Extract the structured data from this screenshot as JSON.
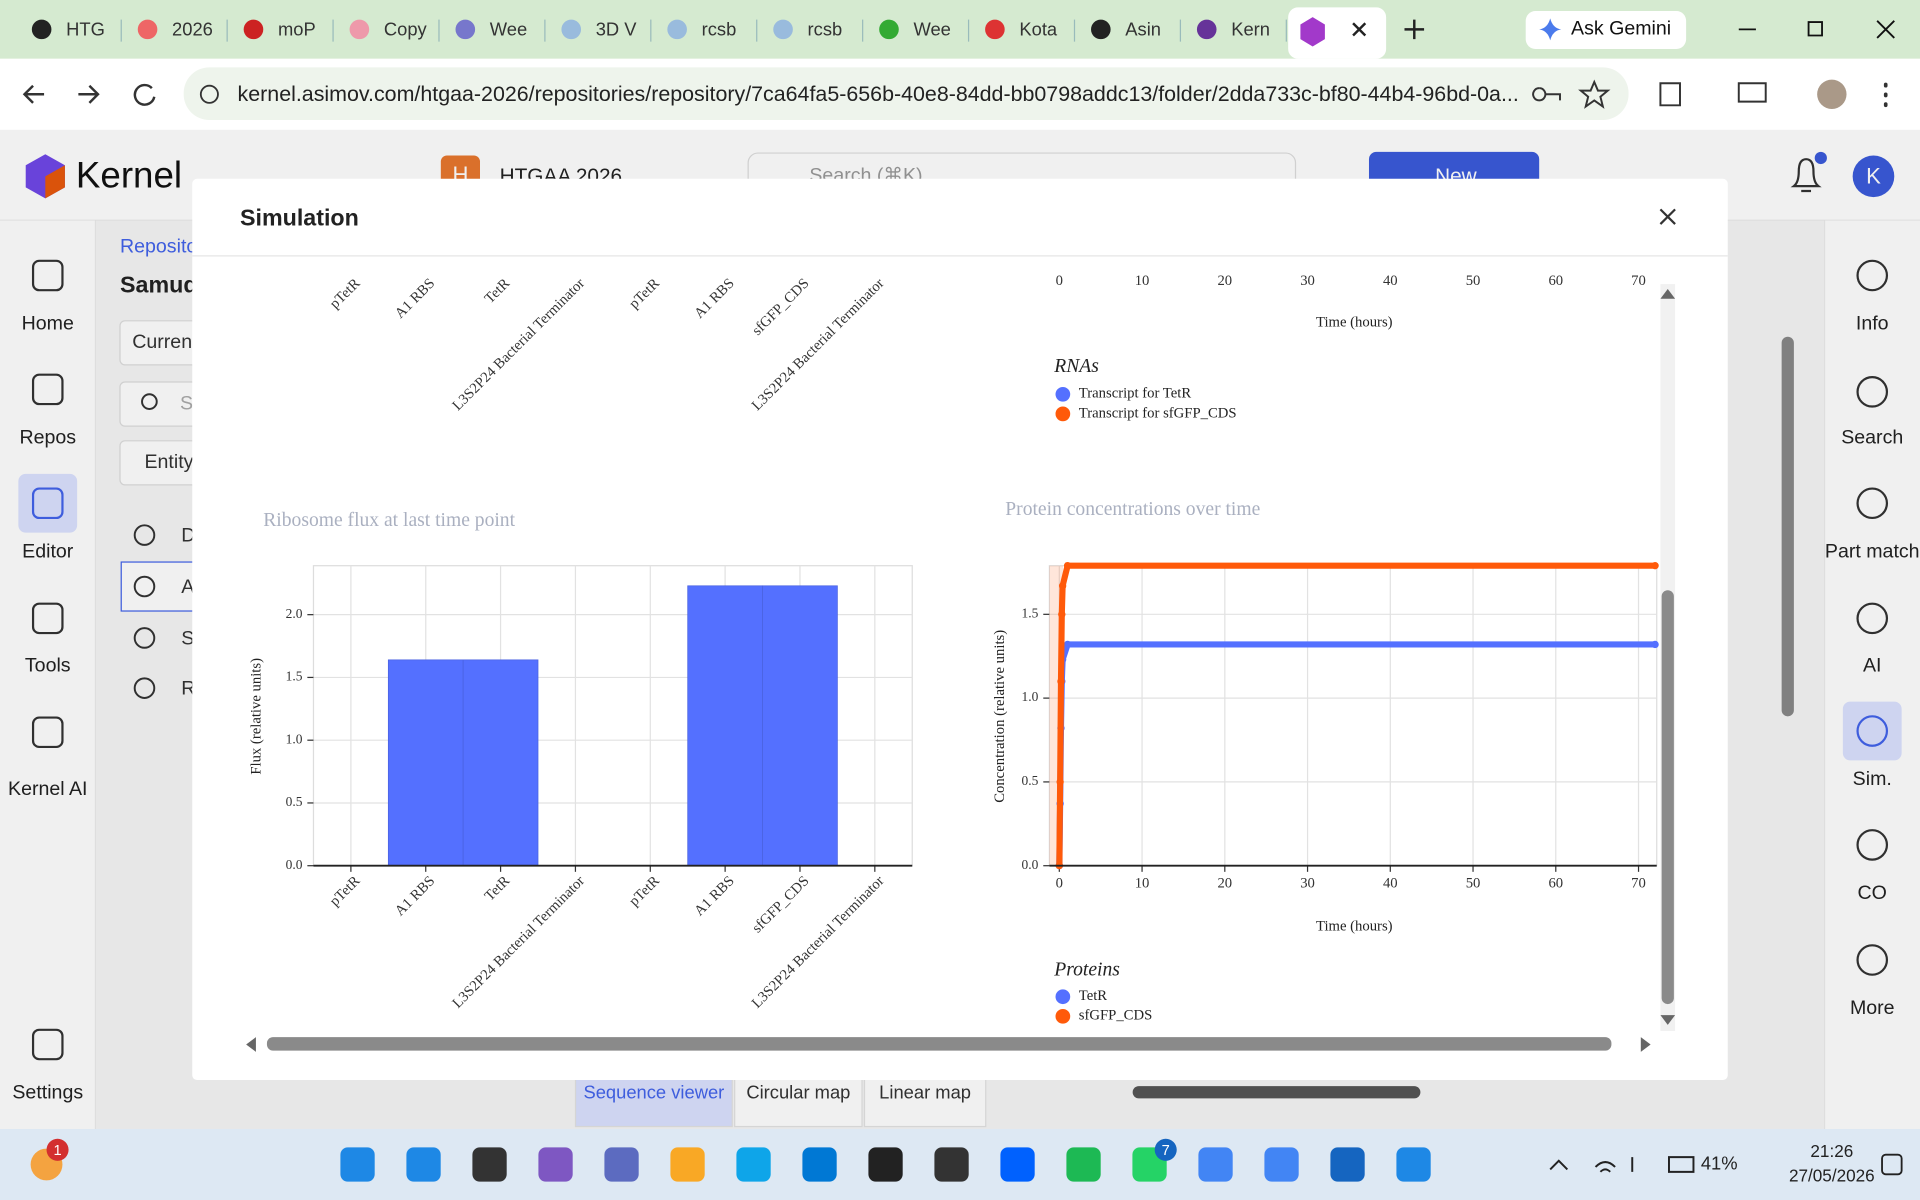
{
  "browser": {
    "tabs": [
      "HTG",
      "2026",
      "moP",
      "Copy",
      "Wee",
      "3D V",
      "rcsb",
      "rcsb",
      "Wee",
      "Kota",
      "Asin",
      "Kern"
    ],
    "gemini": "Ask Gemini",
    "url": "kernel.asimov.com/htgaa-2026/repositories/repository/7ca64fa5-656b-40e8-84dd-bb0798addc13/folder/2dda733c-bf80-44b4-96bd-0a..."
  },
  "app": {
    "logo": "Kernel",
    "workspace_initial": "H",
    "workspace": "HTGAA 2026",
    "search": "Search (⌘K)",
    "new_button": "New",
    "avatar": "K",
    "left_nav": [
      "Home",
      "Repos",
      "Editor",
      "Tools",
      "Kernel AI",
      "Settings"
    ],
    "right_nav": [
      "Info",
      "Search",
      "Part match",
      "AI",
      "Sim.",
      "CO",
      "More"
    ],
    "background": {
      "breadcrumb": "Reposito",
      "title": "Samud",
      "tab": "Curren",
      "search": "S",
      "filter": "Entity",
      "items": [
        "D",
        "A",
        "S",
        "R"
      ]
    },
    "bottom_tabs": [
      "Sequence viewer",
      "Circular map",
      "Linear map"
    ]
  },
  "modal": {
    "title": "Simulation",
    "rna_flux_categories": [
      "pTetR",
      "A1 RBS",
      "TetR",
      "L3S2P24 Bacterial Terminator",
      "pTetR",
      "A1 RBS",
      "sfGFP_CDS",
      "L3S2P24 Bacterial Terminator"
    ],
    "rna_chart": {
      "xticks": [
        0,
        10,
        20,
        30,
        40,
        50,
        60,
        70
      ],
      "x_label": "Time (hours)",
      "legend_title": "RNAs",
      "series": [
        {
          "name": "Transcript for TetR",
          "color": "#5470ff"
        },
        {
          "name": "Transcript for sfGFP_CDS",
          "color": "#ff5a0a"
        }
      ]
    },
    "flux_chart": {
      "type": "bar",
      "title": "Ribosome flux at last time point",
      "y_label": "Flux (relative units)",
      "categories": [
        "pTetR",
        "A1 RBS",
        "TetR",
        "L3S2P24 Bacterial Terminator",
        "pTetR",
        "A1 RBS",
        "sfGFP_CDS",
        "L3S2P24 Bacterial Terminator"
      ],
      "values": [
        0,
        1.64,
        1.64,
        0,
        0,
        2.23,
        2.23,
        0
      ],
      "color": "#5470ff",
      "ylim": [
        0,
        2.39
      ],
      "yticks": [
        {
          "value": 0,
          "label": "0.0"
        },
        {
          "value": 0.5,
          "label": "0.5"
        },
        {
          "value": 1,
          "label": "1.0"
        },
        {
          "value": 1.5,
          "label": "1.5"
        },
        {
          "value": 2,
          "label": "2.0"
        }
      ],
      "grid": true
    },
    "protein_chart": {
      "type": "line",
      "title": "Protein concentrations over time",
      "x_label": "Time (hours)",
      "y_label": "Concentration (relative units)",
      "x": [
        0,
        0.1,
        0.2,
        0.3,
        0.4,
        1,
        72
      ],
      "series": [
        {
          "name": "TetR",
          "color": "#5470ff",
          "values": [
            0,
            0.37,
            0.82,
            1.1,
            1.23,
            1.32,
            1.32
          ]
        },
        {
          "name": "sfGFP_CDS",
          "color": "#ff5a0a",
          "values": [
            0,
            0.5,
            1.1,
            1.5,
            1.67,
            1.79,
            1.79
          ]
        }
      ],
      "legend_title": "Proteins",
      "xlim": [
        -1.2,
        72.2
      ],
      "xticks": [
        0,
        10,
        20,
        30,
        40,
        50,
        60,
        70
      ],
      "ylim": [
        0,
        1.79
      ],
      "yticks": [
        {
          "value": 0,
          "label": "0.0"
        },
        {
          "value": 0.5,
          "label": "0.5"
        },
        {
          "value": 1,
          "label": "1.0"
        },
        {
          "value": 1.5,
          "label": "1.5"
        }
      ],
      "grid": true
    }
  },
  "taskbar": {
    "weather_badge": "1",
    "whatsapp_badge": "7",
    "battery": "41%",
    "time": "21:26",
    "date": "27/05/2026"
  }
}
